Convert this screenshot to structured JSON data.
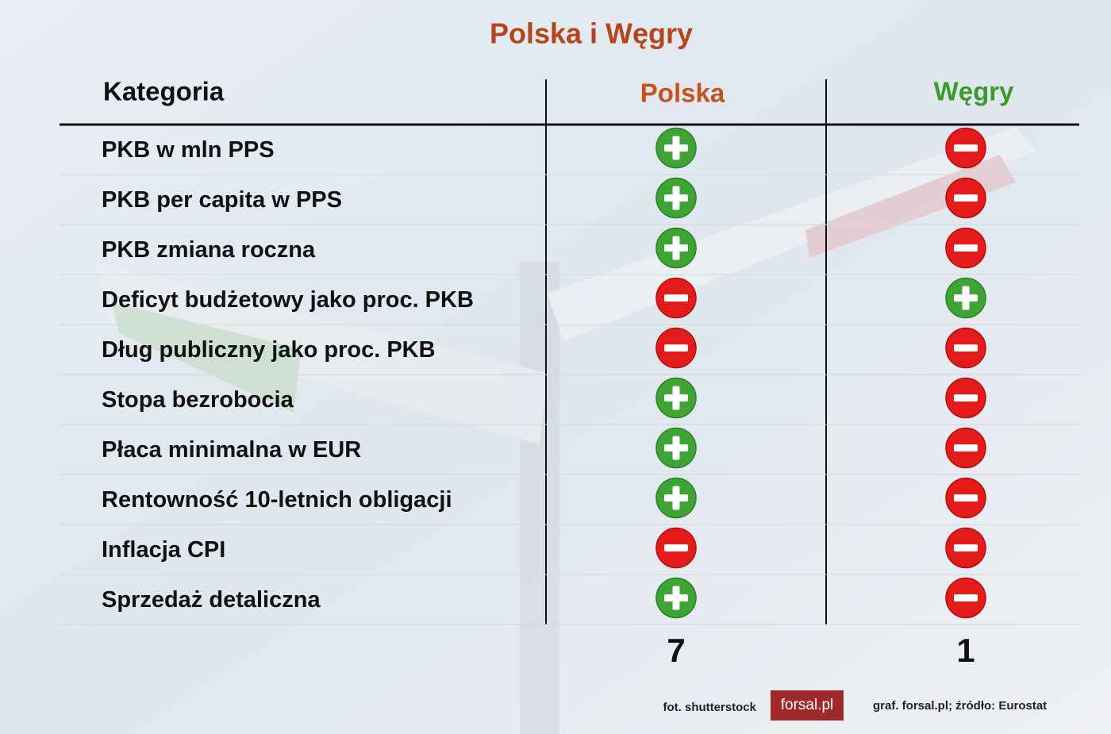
{
  "title": "Polska i Węgry",
  "table": {
    "header": [
      "Kategoria",
      "Polska",
      "Węgry"
    ],
    "rows": [
      [
        "PKB w mln PPS",
        "+",
        "−"
      ],
      [
        "PKB per capita w PPS",
        "+",
        "−"
      ],
      [
        "PKB zmiana roczna",
        "+",
        "−"
      ],
      [
        "Deficyt budżetowy jako proc. PKB",
        "−",
        "+"
      ],
      [
        "Dług publiczny jako proc. PKB",
        "−",
        "−"
      ],
      [
        "Stopa bezrobocia",
        "+",
        "−"
      ],
      [
        "Płaca minimalna w EUR",
        "+",
        "−"
      ],
      [
        "Rentowność 10-letnich obligacji",
        "+",
        "−"
      ],
      [
        "Inflacja CPI",
        "−",
        "−"
      ],
      [
        "Sprzedaż detaliczna",
        "+",
        "−"
      ]
    ],
    "totals": [
      7,
      1
    ]
  },
  "footer": {
    "photo": "fot. shutterstock",
    "logo": "forsal.pl",
    "source": "graf. forsal.pl;  źródło: Eurostat"
  }
}
